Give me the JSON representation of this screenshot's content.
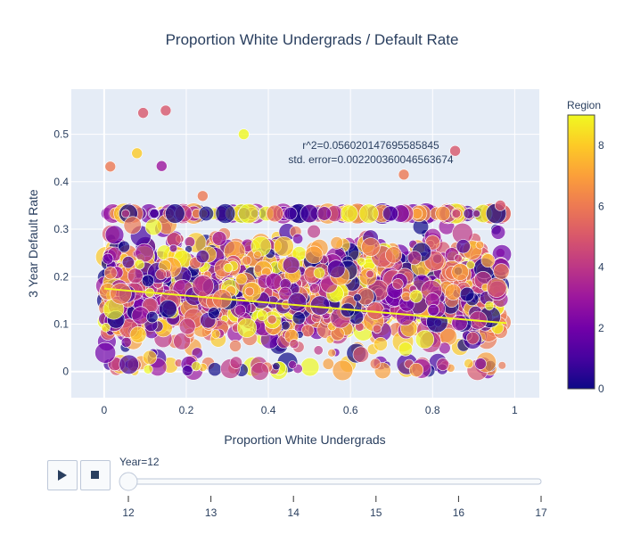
{
  "chart_data": {
    "type": "scatter",
    "title": "Proportion White Undergrads / Default Rate",
    "xlabel": "Proportion White Undergrads",
    "ylabel": "3 Year Default Rate",
    "xlim": [
      -0.08,
      1.06
    ],
    "ylim": [
      -0.055,
      0.595
    ],
    "x_ticks": [
      0,
      0.2,
      0.4,
      0.6,
      0.8,
      1
    ],
    "x_tick_labels": [
      "0",
      "0.2",
      "0.4",
      "0.6",
      "0.8",
      "1"
    ],
    "y_ticks": [
      0,
      0.1,
      0.2,
      0.3,
      0.4,
      0.5
    ],
    "y_tick_labels": [
      "0",
      "0.1",
      "0.2",
      "0.3",
      "0.4",
      "0.5"
    ],
    "annotation_lines": [
      "r^2=0.05602014769558584​5",
      "std. error=0.002200360046563674"
    ],
    "trendline": {
      "x": [
        0,
        0.98
      ],
      "y": [
        0.175,
        0.102
      ]
    },
    "colorbar": {
      "title": "Region",
      "range": [
        0,
        9
      ],
      "ticks": [
        0,
        2,
        4,
        6,
        8
      ],
      "tick_labels": [
        "0",
        "2",
        "4",
        "6",
        "8"
      ],
      "colors": [
        "#0d0887",
        "#46039f",
        "#7201a8",
        "#9c179e",
        "#bd3786",
        "#d8576b",
        "#ed7953",
        "#fb9f3a",
        "#fdca26",
        "#f0f921"
      ]
    },
    "notable_points": [
      {
        "x": 0.095,
        "y": 0.545,
        "region": 5
      },
      {
        "x": 0.15,
        "y": 0.55,
        "region": 5
      },
      {
        "x": 0.34,
        "y": 0.5,
        "region": 9
      },
      {
        "x": 0.08,
        "y": 0.46,
        "region": 8
      },
      {
        "x": 0.855,
        "y": 0.465,
        "region": 5
      },
      {
        "x": 0.14,
        "y": 0.433,
        "region": 3
      },
      {
        "x": 0.015,
        "y": 0.432,
        "region": 6
      },
      {
        "x": 0.73,
        "y": 0.415,
        "region": 6
      },
      {
        "x": 0.24,
        "y": 0.37,
        "region": 6
      },
      {
        "x": 0.965,
        "y": 0.35,
        "region": 5
      }
    ],
    "cloud": {
      "seed": 12,
      "count": 1600,
      "x_range": [
        0,
        0.97
      ],
      "y_range": [
        0,
        0.335
      ],
      "band_y": 0.333
    }
  },
  "slider": {
    "current_label": "Year=12",
    "steps": [
      "12",
      "13",
      "14",
      "15",
      "16",
      "17"
    ],
    "current_index": 0
  },
  "controls": {
    "play_icon": "play-icon",
    "stop_icon": "stop-icon"
  }
}
